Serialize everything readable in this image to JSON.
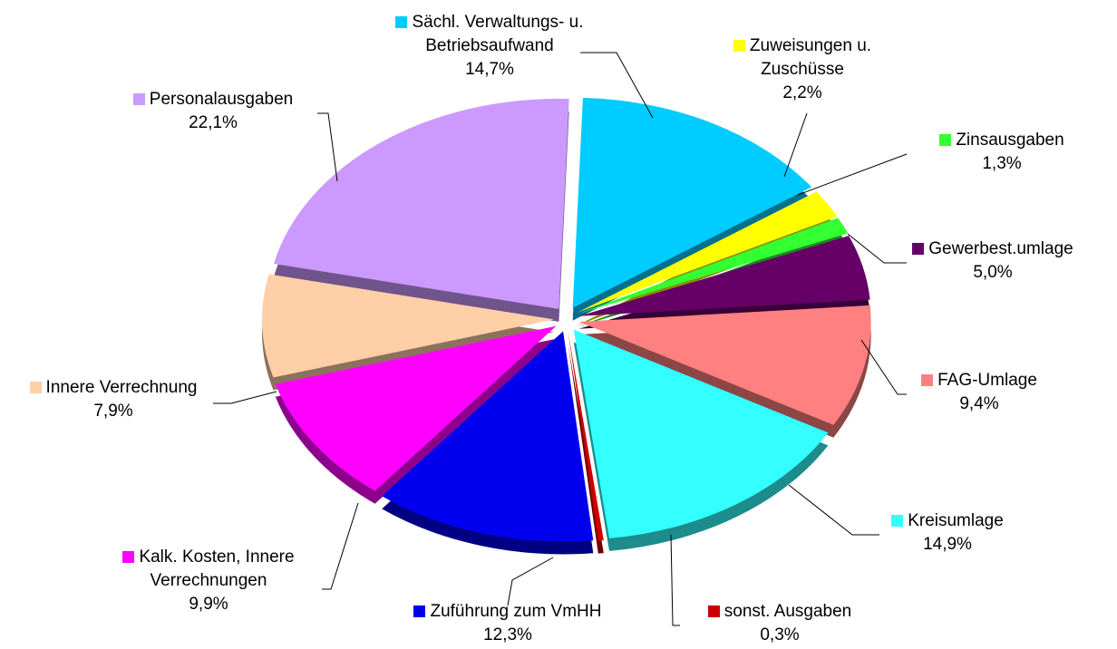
{
  "chart_data": {
    "type": "pie",
    "categories": [
      "Sächl. Verwaltungs- u. Betriebsaufwand",
      "Zuweisungen u. Zuschüsse",
      "Zinsausgaben",
      "Gewerbest.umlage",
      "FAG-Umlage",
      "Kreisumlage",
      "sonst. Ausgaben",
      "Zuführung zum VmHH",
      "Kalk. Kosten, Innere Verrechnungen",
      "Innere Verrechnung",
      "Personalausgaben"
    ],
    "values": [
      14.7,
      2.2,
      1.3,
      5.0,
      9.4,
      14.9,
      0.3,
      12.3,
      9.9,
      7.9,
      22.1
    ],
    "value_labels": [
      "14,7%",
      "2,2%",
      "1,3%",
      "5,0%",
      "9,4%",
      "14,9%",
      "0,3%",
      "12,3%",
      "9,9%",
      "7,9%",
      "22,1%"
    ],
    "colors": [
      "#00ccff",
      "#ffff00",
      "#33ff33",
      "#660066",
      "#ff8080",
      "#33ffff",
      "#cc0000",
      "#0000ee",
      "#ff00ff",
      "#ffd0a8",
      "#cc99ff"
    ]
  }
}
